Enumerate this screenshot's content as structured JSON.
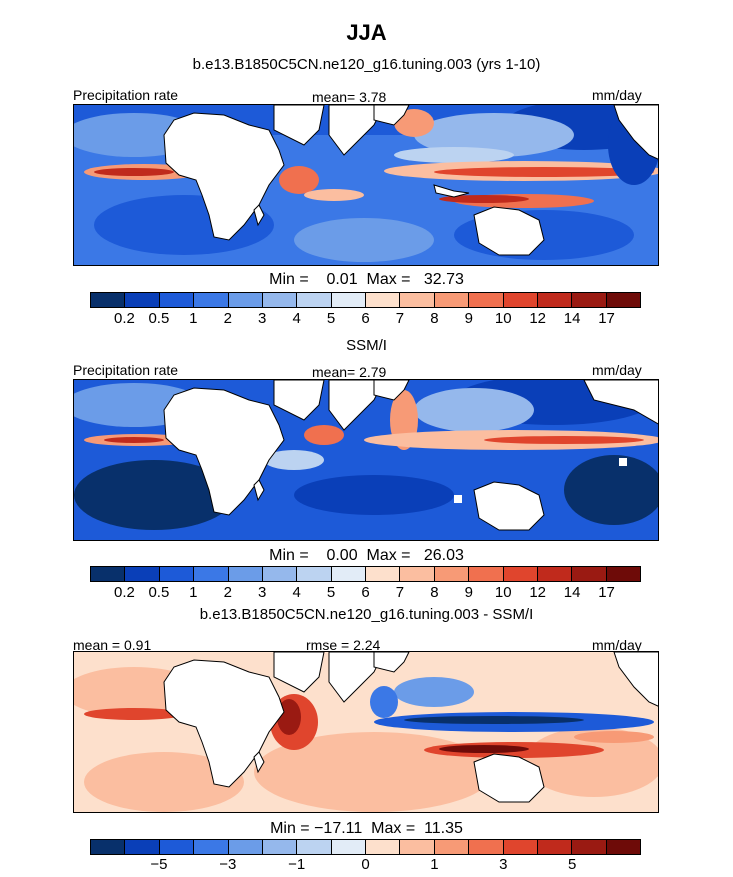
{
  "page_title": "JJA",
  "colorbar_colors": [
    "#08306b",
    "#0a3fb8",
    "#1d5ad8",
    "#3b78e6",
    "#6b9ce8",
    "#95b8ec",
    "#bcd3f1",
    "#e2ecf7",
    "#fde0cc",
    "#fbbea0",
    "#f79a76",
    "#f0704f",
    "#e0452d",
    "#c02a1c",
    "#9a1a12",
    "#6e0b08"
  ],
  "panels": [
    {
      "subtitle": "b.e13.B1850C5CN.ne120_g16.tuning.003 (yrs 1-10)",
      "left_label": "Precipitation rate",
      "center_label": "mean=   3.78",
      "right_label": "mm/day",
      "minmax": "Min =    0.01  Max =   32.73",
      "ticks": [
        "0.2",
        "0.5",
        "1",
        "2",
        "3",
        "4",
        "5",
        "6",
        "7",
        "8",
        "9",
        "10",
        "12",
        "14",
        "17"
      ]
    },
    {
      "subtitle": "SSM/I",
      "left_label": "Precipitation rate",
      "center_label": "mean=   2.79",
      "right_label": "mm/day",
      "minmax": "Min =    0.00  Max =   26.03",
      "ticks": [
        "0.2",
        "0.5",
        "1",
        "2",
        "3",
        "4",
        "5",
        "6",
        "7",
        "8",
        "9",
        "10",
        "12",
        "14",
        "17"
      ]
    },
    {
      "subtitle": "b.e13.B1850C5CN.ne120_g16.tuning.003 - SSM/I",
      "left_label": "mean =   0.91",
      "center_label": "rmse =   2.24",
      "right_label": "mm/day",
      "minmax": "Min = −17.11  Max =  11.35",
      "ticks": [
        "−5",
        "−3",
        "−1",
        "0",
        "1",
        "3",
        "5"
      ]
    }
  ],
  "chart_data": [
    {
      "type": "heatmap",
      "title": "b.e13.B1850C5CN.ne120_g16.tuning.003 (yrs 1-10)",
      "variable": "Precipitation rate",
      "units": "mm/day",
      "mean": 3.78,
      "min": 0.01,
      "max": 32.73,
      "levels": [
        0.2,
        0.5,
        1,
        2,
        3,
        4,
        5,
        6,
        7,
        8,
        9,
        10,
        12,
        14,
        17
      ]
    },
    {
      "type": "heatmap",
      "title": "SSM/I",
      "variable": "Precipitation rate",
      "units": "mm/day",
      "mean": 2.79,
      "min": 0.0,
      "max": 26.03,
      "levels": [
        0.2,
        0.5,
        1,
        2,
        3,
        4,
        5,
        6,
        7,
        8,
        9,
        10,
        12,
        14,
        17
      ]
    },
    {
      "type": "heatmap",
      "title": "b.e13.B1850C5CN.ne120_g16.tuning.003 - SSM/I",
      "units": "mm/day",
      "mean": 0.91,
      "rmse": 2.24,
      "min": -17.11,
      "max": 11.35,
      "levels": [
        -6,
        -5,
        -4,
        -3,
        -2,
        -1,
        0,
        0.5,
        1,
        2,
        3,
        4,
        5,
        6
      ]
    }
  ]
}
